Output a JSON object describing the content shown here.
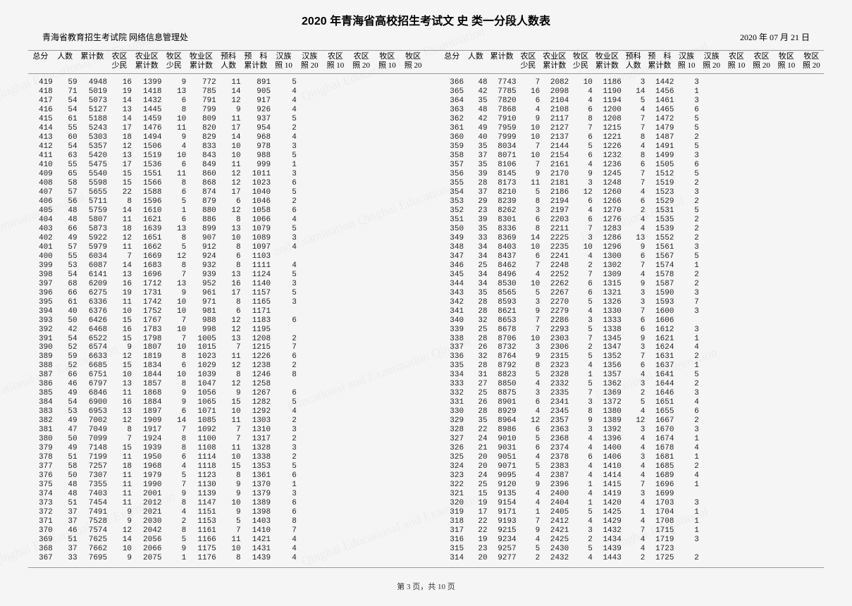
{
  "title": "2020 年青海省高校招生考试文 史 类一分段人数表",
  "org": "青海省教育招生考试院  网络信息管理处",
  "date": "2020 年 07 月 21 日",
  "footer": "第 3 页，共 10 页",
  "columns": [
    {
      "l1": "",
      "l2": "总分"
    },
    {
      "l1": "",
      "l2": "人数"
    },
    {
      "l1": "",
      "l2": "累计数"
    },
    {
      "l1": "农区",
      "l2": "少民"
    },
    {
      "l1": "农业区",
      "l2": "累计数"
    },
    {
      "l1": "牧区",
      "l2": "少民"
    },
    {
      "l1": "牧业区",
      "l2": "累计数"
    },
    {
      "l1": "预科",
      "l2": "人数"
    },
    {
      "l1": "预　科",
      "l2": "累计数"
    },
    {
      "l1": "汉族",
      "l2": "照 10"
    },
    {
      "l1": "汉族",
      "l2": "照 20"
    },
    {
      "l1": "农区",
      "l2": "照 10"
    },
    {
      "l1": "农区",
      "l2": "照 20"
    },
    {
      "l1": "牧区",
      "l2": "照 10"
    },
    {
      "l1": "牧区",
      "l2": "照 20"
    }
  ],
  "left": [
    [
      419,
      59,
      4948,
      16,
      1399,
      9,
      772,
      11,
      891,
      5,
      "",
      "",
      "",
      "",
      ""
    ],
    [
      418,
      71,
      5019,
      19,
      1418,
      13,
      785,
      14,
      905,
      4,
      "",
      "",
      "",
      "",
      ""
    ],
    [
      417,
      54,
      5073,
      14,
      1432,
      6,
      791,
      12,
      917,
      4,
      "",
      "",
      "",
      "",
      ""
    ],
    [
      416,
      54,
      5127,
      13,
      1445,
      8,
      799,
      9,
      926,
      4,
      "",
      "",
      "",
      "",
      ""
    ],
    [
      415,
      61,
      5188,
      14,
      1459,
      10,
      809,
      11,
      937,
      5,
      "",
      "",
      "",
      "",
      ""
    ],
    [
      414,
      55,
      5243,
      17,
      1476,
      11,
      820,
      17,
      954,
      2,
      "",
      "",
      "",
      "",
      ""
    ],
    [
      413,
      60,
      5303,
      18,
      1494,
      9,
      829,
      14,
      968,
      4,
      "",
      "",
      "",
      "",
      ""
    ],
    [
      412,
      54,
      5357,
      12,
      1506,
      4,
      833,
      10,
      978,
      3,
      "",
      "",
      "",
      "",
      ""
    ],
    [
      411,
      63,
      5420,
      13,
      1519,
      10,
      843,
      10,
      988,
      5,
      "",
      "",
      "",
      "",
      ""
    ],
    [
      410,
      55,
      5475,
      17,
      1536,
      6,
      849,
      11,
      999,
      1,
      "",
      "",
      "",
      "",
      ""
    ],
    [
      409,
      65,
      5540,
      15,
      1551,
      11,
      860,
      12,
      1011,
      3,
      "",
      "",
      "",
      "",
      ""
    ],
    [
      408,
      58,
      5598,
      15,
      1566,
      8,
      868,
      12,
      1023,
      6,
      "",
      "",
      "",
      "",
      ""
    ],
    [
      407,
      57,
      5655,
      22,
      1588,
      6,
      874,
      17,
      1040,
      5,
      "",
      "",
      "",
      "",
      ""
    ],
    [
      406,
      56,
      5711,
      8,
      1596,
      5,
      879,
      6,
      1046,
      2,
      "",
      "",
      "",
      "",
      ""
    ],
    [
      405,
      48,
      5759,
      14,
      1610,
      1,
      880,
      12,
      1058,
      6,
      "",
      "",
      "",
      "",
      ""
    ],
    [
      404,
      48,
      5807,
      11,
      1621,
      6,
      886,
      8,
      1066,
      4,
      "",
      "",
      "",
      "",
      ""
    ],
    [
      403,
      66,
      5873,
      18,
      1639,
      13,
      899,
      13,
      1079,
      5,
      "",
      "",
      "",
      "",
      ""
    ],
    [
      402,
      49,
      5922,
      12,
      1651,
      8,
      907,
      10,
      1089,
      3,
      "",
      "",
      "",
      "",
      ""
    ],
    [
      401,
      57,
      5979,
      11,
      1662,
      5,
      912,
      8,
      1097,
      4,
      "",
      "",
      "",
      "",
      ""
    ],
    [
      400,
      55,
      6034,
      7,
      1669,
      12,
      924,
      6,
      1103,
      "",
      "",
      "",
      "",
      "",
      ""
    ],
    [
      399,
      53,
      6087,
      14,
      1683,
      8,
      932,
      8,
      1111,
      4,
      "",
      "",
      "",
      "",
      ""
    ],
    [
      398,
      54,
      6141,
      13,
      1696,
      7,
      939,
      13,
      1124,
      5,
      "",
      "",
      "",
      "",
      ""
    ],
    [
      397,
      68,
      6209,
      16,
      1712,
      13,
      952,
      16,
      1140,
      3,
      "",
      "",
      "",
      "",
      ""
    ],
    [
      396,
      66,
      6275,
      19,
      1731,
      9,
      961,
      17,
      1157,
      5,
      "",
      "",
      "",
      "",
      ""
    ],
    [
      395,
      61,
      6336,
      11,
      1742,
      10,
      971,
      8,
      1165,
      3,
      "",
      "",
      "",
      "",
      ""
    ],
    [
      394,
      40,
      6376,
      10,
      1752,
      10,
      981,
      6,
      1171,
      "",
      "",
      "",
      "",
      "",
      ""
    ],
    [
      393,
      50,
      6426,
      15,
      1767,
      7,
      988,
      12,
      1183,
      6,
      "",
      "",
      "",
      "",
      ""
    ],
    [
      392,
      42,
      6468,
      16,
      1783,
      10,
      998,
      12,
      1195,
      "",
      "",
      "",
      "",
      "",
      ""
    ],
    [
      391,
      54,
      6522,
      15,
      1798,
      7,
      1005,
      13,
      1208,
      2,
      "",
      "",
      "",
      "",
      ""
    ],
    [
      390,
      52,
      6574,
      9,
      1807,
      10,
      1015,
      7,
      1215,
      7,
      "",
      "",
      "",
      "",
      ""
    ],
    [
      389,
      59,
      6633,
      12,
      1819,
      8,
      1023,
      11,
      1226,
      6,
      "",
      "",
      "",
      "",
      ""
    ],
    [
      388,
      52,
      6685,
      15,
      1834,
      6,
      1029,
      12,
      1238,
      2,
      "",
      "",
      "",
      "",
      ""
    ],
    [
      387,
      66,
      6751,
      10,
      1844,
      10,
      1039,
      8,
      1246,
      8,
      "",
      "",
      "",
      "",
      ""
    ],
    [
      386,
      46,
      6797,
      13,
      1857,
      8,
      1047,
      12,
      1258,
      "",
      "",
      "",
      "",
      "",
      ""
    ],
    [
      385,
      49,
      6846,
      11,
      1868,
      9,
      1056,
      9,
      1267,
      6,
      "",
      "",
      "",
      "",
      ""
    ],
    [
      384,
      54,
      6900,
      16,
      1884,
      9,
      1065,
      15,
      1282,
      5,
      "",
      "",
      "",
      "",
      ""
    ],
    [
      383,
      53,
      6953,
      13,
      1897,
      6,
      1071,
      10,
      1292,
      4,
      "",
      "",
      "",
      "",
      ""
    ],
    [
      382,
      49,
      7002,
      12,
      1909,
      14,
      1085,
      11,
      1303,
      2,
      "",
      "",
      "",
      "",
      ""
    ],
    [
      381,
      47,
      7049,
      8,
      1917,
      7,
      1092,
      7,
      1310,
      3,
      "",
      "",
      "",
      "",
      ""
    ],
    [
      380,
      50,
      7099,
      7,
      1924,
      8,
      1100,
      7,
      1317,
      2,
      "",
      "",
      "",
      "",
      ""
    ],
    [
      379,
      49,
      7148,
      15,
      1939,
      8,
      1108,
      11,
      1328,
      3,
      "",
      "",
      "",
      "",
      ""
    ],
    [
      378,
      51,
      7199,
      11,
      1950,
      6,
      1114,
      10,
      1338,
      2,
      "",
      "",
      "",
      "",
      ""
    ],
    [
      377,
      58,
      7257,
      18,
      1968,
      4,
      1118,
      15,
      1353,
      5,
      "",
      "",
      "",
      "",
      ""
    ],
    [
      376,
      50,
      7307,
      11,
      1979,
      5,
      1123,
      8,
      1361,
      6,
      "",
      "",
      "",
      "",
      ""
    ],
    [
      375,
      48,
      7355,
      11,
      1990,
      7,
      1130,
      9,
      1370,
      1,
      "",
      "",
      "",
      "",
      ""
    ],
    [
      374,
      48,
      7403,
      11,
      2001,
      9,
      1139,
      9,
      1379,
      3,
      "",
      "",
      "",
      "",
      ""
    ],
    [
      373,
      51,
      7454,
      11,
      2012,
      8,
      1147,
      10,
      1389,
      6,
      "",
      "",
      "",
      "",
      ""
    ],
    [
      372,
      37,
      7491,
      9,
      2021,
      4,
      1151,
      9,
      1398,
      6,
      "",
      "",
      "",
      "",
      ""
    ],
    [
      371,
      37,
      7528,
      9,
      2030,
      2,
      1153,
      5,
      1403,
      8,
      "",
      "",
      "",
      "",
      ""
    ],
    [
      370,
      46,
      7574,
      12,
      2042,
      8,
      1161,
      7,
      1410,
      7,
      "",
      "",
      "",
      "",
      ""
    ],
    [
      369,
      51,
      7625,
      14,
      2056,
      5,
      1166,
      11,
      1421,
      4,
      "",
      "",
      "",
      "",
      ""
    ],
    [
      368,
      37,
      7662,
      10,
      2066,
      9,
      1175,
      10,
      1431,
      4,
      "",
      "",
      "",
      "",
      ""
    ],
    [
      367,
      33,
      7695,
      9,
      2075,
      1,
      1176,
      8,
      1439,
      4,
      "",
      "",
      "",
      "",
      ""
    ]
  ],
  "right": [
    [
      366,
      48,
      7743,
      7,
      2082,
      10,
      1186,
      3,
      1442,
      3,
      "",
      "",
      "",
      "",
      ""
    ],
    [
      365,
      42,
      7785,
      16,
      2098,
      4,
      1190,
      14,
      1456,
      1,
      "",
      "",
      "",
      "",
      ""
    ],
    [
      364,
      35,
      7820,
      6,
      2104,
      4,
      1194,
      5,
      1461,
      3,
      "",
      "",
      "",
      "",
      ""
    ],
    [
      363,
      48,
      7868,
      4,
      2108,
      6,
      1200,
      4,
      1465,
      6,
      "",
      "",
      "",
      "",
      ""
    ],
    [
      362,
      42,
      7910,
      9,
      2117,
      8,
      1208,
      7,
      1472,
      5,
      "",
      "",
      "",
      "",
      ""
    ],
    [
      361,
      49,
      7959,
      10,
      2127,
      7,
      1215,
      7,
      1479,
      5,
      "",
      "",
      "",
      "",
      ""
    ],
    [
      360,
      40,
      7999,
      10,
      2137,
      6,
      1221,
      8,
      1487,
      2,
      "",
      "",
      "",
      "",
      ""
    ],
    [
      359,
      35,
      8034,
      7,
      2144,
      5,
      1226,
      4,
      1491,
      5,
      "",
      "",
      "",
      "",
      ""
    ],
    [
      358,
      37,
      8071,
      10,
      2154,
      6,
      1232,
      8,
      1499,
      3,
      "",
      "",
      "",
      "",
      ""
    ],
    [
      357,
      35,
      8106,
      7,
      2161,
      4,
      1236,
      6,
      1505,
      6,
      "",
      "",
      "",
      "",
      ""
    ],
    [
      356,
      39,
      8145,
      9,
      2170,
      9,
      1245,
      7,
      1512,
      5,
      "",
      "",
      "",
      "",
      ""
    ],
    [
      355,
      28,
      8173,
      11,
      2181,
      3,
      1248,
      7,
      1519,
      2,
      "",
      "",
      "",
      "",
      ""
    ],
    [
      354,
      37,
      8210,
      5,
      2186,
      12,
      1260,
      4,
      1523,
      3,
      "",
      "",
      "",
      "",
      ""
    ],
    [
      353,
      29,
      8239,
      8,
      2194,
      6,
      1266,
      6,
      1529,
      2,
      "",
      "",
      "",
      "",
      ""
    ],
    [
      352,
      23,
      8262,
      3,
      2197,
      4,
      1270,
      2,
      1531,
      5,
      "",
      "",
      "",
      "",
      ""
    ],
    [
      351,
      39,
      8301,
      6,
      2203,
      6,
      1276,
      4,
      1535,
      2,
      "",
      "",
      "",
      "",
      ""
    ],
    [
      350,
      35,
      8336,
      8,
      2211,
      7,
      1283,
      4,
      1539,
      2,
      "",
      "",
      "",
      "",
      ""
    ],
    [
      349,
      33,
      8369,
      14,
      2225,
      3,
      1286,
      13,
      1552,
      2,
      "",
      "",
      "",
      "",
      ""
    ],
    [
      348,
      34,
      8403,
      10,
      2235,
      10,
      1296,
      9,
      1561,
      3,
      "",
      "",
      "",
      "",
      ""
    ],
    [
      347,
      34,
      8437,
      6,
      2241,
      4,
      1300,
      6,
      1567,
      5,
      "",
      "",
      "",
      "",
      ""
    ],
    [
      346,
      25,
      8462,
      7,
      2248,
      2,
      1302,
      7,
      1574,
      1,
      "",
      "",
      "",
      "",
      ""
    ],
    [
      345,
      34,
      8496,
      4,
      2252,
      7,
      1309,
      4,
      1578,
      2,
      "",
      "",
      "",
      "",
      ""
    ],
    [
      344,
      34,
      8530,
      10,
      2262,
      6,
      1315,
      9,
      1587,
      2,
      "",
      "",
      "",
      "",
      ""
    ],
    [
      343,
      35,
      8565,
      5,
      2267,
      6,
      1321,
      3,
      1590,
      3,
      "",
      "",
      "",
      "",
      ""
    ],
    [
      342,
      28,
      8593,
      3,
      2270,
      5,
      1326,
      3,
      1593,
      7,
      "",
      "",
      "",
      "",
      ""
    ],
    [
      341,
      28,
      8621,
      9,
      2279,
      4,
      1330,
      7,
      1600,
      3,
      "",
      "",
      "",
      "",
      ""
    ],
    [
      340,
      32,
      8653,
      7,
      2286,
      3,
      1333,
      6,
      1606,
      "",
      "",
      "",
      "",
      "",
      ""
    ],
    [
      339,
      25,
      8678,
      7,
      2293,
      5,
      1338,
      6,
      1612,
      3,
      "",
      "",
      "",
      "",
      ""
    ],
    [
      338,
      28,
      8706,
      10,
      2303,
      7,
      1345,
      9,
      1621,
      1,
      "",
      "",
      "",
      "",
      ""
    ],
    [
      337,
      26,
      8732,
      3,
      2306,
      2,
      1347,
      3,
      1624,
      4,
      "",
      "",
      "",
      "",
      ""
    ],
    [
      336,
      32,
      8764,
      9,
      2315,
      5,
      1352,
      7,
      1631,
      2,
      "",
      "",
      "",
      "",
      ""
    ],
    [
      335,
      28,
      8792,
      8,
      2323,
      4,
      1356,
      6,
      1637,
      1,
      "",
      "",
      "",
      "",
      ""
    ],
    [
      334,
      31,
      8823,
      5,
      2328,
      1,
      1357,
      4,
      1641,
      5,
      "",
      "",
      "",
      "",
      ""
    ],
    [
      333,
      27,
      8850,
      4,
      2332,
      5,
      1362,
      3,
      1644,
      2,
      "",
      "",
      "",
      "",
      ""
    ],
    [
      332,
      25,
      8875,
      3,
      2335,
      7,
      1369,
      2,
      1646,
      3,
      "",
      "",
      "",
      "",
      ""
    ],
    [
      331,
      26,
      8901,
      6,
      2341,
      3,
      1372,
      5,
      1651,
      4,
      "",
      "",
      "",
      "",
      ""
    ],
    [
      330,
      28,
      8929,
      4,
      2345,
      8,
      1380,
      4,
      1655,
      6,
      "",
      "",
      "",
      "",
      ""
    ],
    [
      329,
      35,
      8964,
      12,
      2357,
      9,
      1389,
      12,
      1667,
      2,
      "",
      "",
      "",
      "",
      ""
    ],
    [
      328,
      22,
      8986,
      6,
      2363,
      3,
      1392,
      3,
      1670,
      3,
      "",
      "",
      "",
      "",
      ""
    ],
    [
      327,
      24,
      9010,
      5,
      2368,
      4,
      1396,
      4,
      1674,
      1,
      "",
      "",
      "",
      "",
      ""
    ],
    [
      326,
      21,
      9031,
      6,
      2374,
      4,
      1400,
      4,
      1678,
      4,
      "",
      "",
      "",
      "",
      ""
    ],
    [
      325,
      20,
      9051,
      4,
      2378,
      6,
      1406,
      3,
      1681,
      1,
      "",
      "",
      "",
      "",
      ""
    ],
    [
      324,
      20,
      9071,
      5,
      2383,
      4,
      1410,
      4,
      1685,
      2,
      "",
      "",
      "",
      "",
      ""
    ],
    [
      323,
      24,
      9095,
      4,
      2387,
      4,
      1414,
      4,
      1689,
      4,
      "",
      "",
      "",
      "",
      ""
    ],
    [
      322,
      25,
      9120,
      9,
      2396,
      1,
      1415,
      7,
      1696,
      1,
      "",
      "",
      "",
      "",
      ""
    ],
    [
      321,
      15,
      9135,
      4,
      2400,
      4,
      1419,
      3,
      1699,
      "",
      "",
      "",
      "",
      "",
      ""
    ],
    [
      320,
      19,
      9154,
      4,
      2404,
      1,
      1420,
      4,
      1703,
      3,
      "",
      "",
      "",
      "",
      ""
    ],
    [
      319,
      17,
      9171,
      1,
      2405,
      5,
      1425,
      1,
      1704,
      1,
      "",
      "",
      "",
      "",
      ""
    ],
    [
      318,
      22,
      9193,
      7,
      2412,
      4,
      1429,
      4,
      1708,
      1,
      "",
      "",
      "",
      "",
      ""
    ],
    [
      317,
      22,
      9215,
      9,
      2421,
      3,
      1432,
      7,
      1715,
      1,
      "",
      "",
      "",
      "",
      ""
    ],
    [
      316,
      19,
      9234,
      4,
      2425,
      2,
      1434,
      4,
      1719,
      3,
      "",
      "",
      "",
      "",
      ""
    ],
    [
      315,
      23,
      9257,
      5,
      2430,
      5,
      1439,
      4,
      1723,
      "",
      "",
      "",
      "",
      "",
      ""
    ],
    [
      314,
      20,
      9277,
      2,
      2432,
      4,
      1443,
      2,
      1725,
      2,
      "",
      "",
      "",
      "",
      ""
    ]
  ]
}
